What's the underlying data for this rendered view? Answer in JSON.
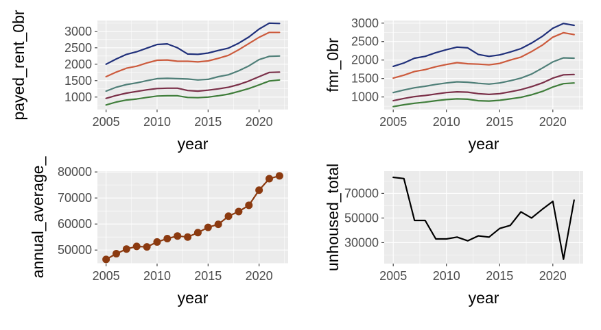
{
  "chart_data": [
    {
      "id": "rent",
      "type": "line",
      "xlabel": "year",
      "ylabel": "payed_rent_0br",
      "xlim": [
        2004.15,
        2022.85
      ],
      "ylim": [
        620,
        3330
      ],
      "xticks": [
        2005,
        2010,
        2015,
        2020
      ],
      "yticks": [
        1000,
        1500,
        2000,
        2500,
        3000
      ],
      "x": [
        2005,
        2006,
        2007,
        2008,
        2009,
        2010,
        2011,
        2012,
        2013,
        2014,
        2015,
        2016,
        2017,
        2018,
        2019,
        2020,
        2021,
        2022
      ],
      "series": [
        {
          "color": "#1f2f7a",
          "values": [
            2000,
            2160,
            2300,
            2380,
            2490,
            2600,
            2620,
            2500,
            2310,
            2300,
            2340,
            2420,
            2490,
            2640,
            2830,
            3070,
            3250,
            3240
          ]
        },
        {
          "color": "#cc5a3c",
          "values": [
            1620,
            1760,
            1880,
            1940,
            2040,
            2120,
            2130,
            2090,
            2090,
            2070,
            2100,
            2180,
            2270,
            2440,
            2630,
            2820,
            2970,
            2970
          ]
        },
        {
          "color": "#4f7f78",
          "values": [
            1180,
            1300,
            1380,
            1430,
            1500,
            1560,
            1570,
            1560,
            1550,
            1520,
            1540,
            1620,
            1680,
            1800,
            1950,
            2140,
            2240,
            2250
          ]
        },
        {
          "color": "#7a2f48",
          "values": [
            960,
            1050,
            1120,
            1170,
            1220,
            1260,
            1270,
            1270,
            1200,
            1180,
            1210,
            1250,
            1300,
            1380,
            1490,
            1620,
            1750,
            1760
          ]
        },
        {
          "color": "#3f7d3a",
          "values": [
            760,
            850,
            910,
            940,
            990,
            1030,
            1040,
            1040,
            990,
            980,
            1000,
            1040,
            1090,
            1170,
            1260,
            1370,
            1490,
            1520
          ]
        }
      ]
    },
    {
      "id": "fmr",
      "type": "line",
      "xlabel": "year",
      "ylabel": "fmr_0br",
      "xlim": [
        2004.15,
        2022.85
      ],
      "ylim": [
        660,
        3070
      ],
      "xticks": [
        2005,
        2010,
        2015,
        2020
      ],
      "yticks": [
        1000,
        1500,
        2000,
        2500,
        3000
      ],
      "x": [
        2005,
        2006,
        2007,
        2008,
        2009,
        2010,
        2011,
        2012,
        2013,
        2014,
        2015,
        2016,
        2017,
        2018,
        2019,
        2020,
        2021,
        2022
      ],
      "series": [
        {
          "color": "#1f2f7a",
          "values": [
            1830,
            1920,
            2050,
            2100,
            2200,
            2280,
            2350,
            2330,
            2150,
            2100,
            2140,
            2220,
            2310,
            2460,
            2640,
            2860,
            2990,
            2940
          ]
        },
        {
          "color": "#cc5a3c",
          "values": [
            1510,
            1590,
            1690,
            1740,
            1820,
            1880,
            1930,
            1900,
            1890,
            1870,
            1910,
            2000,
            2080,
            2230,
            2400,
            2620,
            2740,
            2690
          ]
        },
        {
          "color": "#4f7f78",
          "values": [
            1120,
            1190,
            1250,
            1290,
            1340,
            1380,
            1410,
            1400,
            1370,
            1350,
            1380,
            1440,
            1510,
            1620,
            1780,
            1950,
            2060,
            2050
          ]
        },
        {
          "color": "#7a2f48",
          "values": [
            900,
            960,
            1010,
            1040,
            1080,
            1120,
            1140,
            1130,
            1090,
            1070,
            1090,
            1140,
            1200,
            1280,
            1380,
            1510,
            1600,
            1610
          ]
        },
        {
          "color": "#3f7d3a",
          "values": [
            740,
            790,
            830,
            860,
            900,
            930,
            950,
            940,
            900,
            890,
            910,
            950,
            990,
            1060,
            1150,
            1270,
            1360,
            1380
          ]
        }
      ]
    },
    {
      "id": "income",
      "type": "line",
      "xlabel": "year",
      "ylabel": "annual_average_",
      "xlim": [
        2004.15,
        2022.85
      ],
      "ylim": [
        44800,
        80300
      ],
      "xticks": [
        2005,
        2010,
        2015,
        2020
      ],
      "yticks": [
        50000,
        60000,
        70000,
        80000
      ],
      "markers": true,
      "x": [
        2005,
        2006,
        2007,
        2008,
        2009,
        2010,
        2011,
        2012,
        2013,
        2014,
        2015,
        2016,
        2017,
        2018,
        2019,
        2020,
        2021,
        2022
      ],
      "series": [
        {
          "color": "#8b3a10",
          "values": [
            46400,
            48600,
            50400,
            51400,
            51200,
            53100,
            54400,
            55400,
            55000,
            56700,
            58700,
            59900,
            63000,
            64800,
            67200,
            73000,
            77400,
            78500
          ]
        }
      ]
    },
    {
      "id": "unhoused",
      "type": "line",
      "xlabel": "year",
      "ylabel": "unhoused_total",
      "xlim": [
        2004.15,
        2022.85
      ],
      "ylim": [
        13000,
        88000
      ],
      "xticks": [
        2005,
        2010,
        2015,
        2020
      ],
      "yticks": [
        30000,
        50000,
        70000
      ],
      "x": [
        2005,
        2006,
        2007,
        2008,
        2009,
        2010,
        2011,
        2012,
        2013,
        2014,
        2015,
        2016,
        2017,
        2018,
        2019,
        2020,
        2021,
        2022
      ],
      "series": [
        {
          "color": "#000000",
          "values": [
            83000,
            82000,
            48000,
            48000,
            33000,
            33000,
            34500,
            31500,
            35500,
            34500,
            41500,
            44000,
            55000,
            50000,
            57000,
            63500,
            16500,
            64500
          ]
        }
      ]
    }
  ]
}
